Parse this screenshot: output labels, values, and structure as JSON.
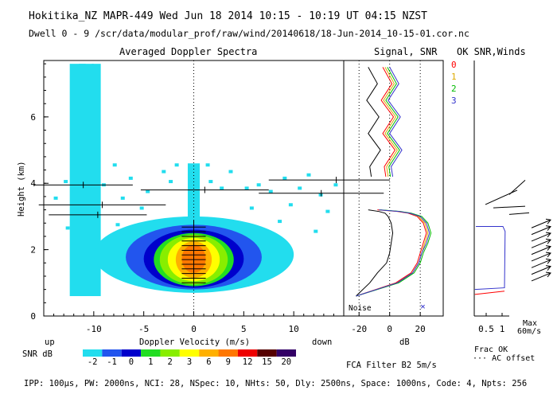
{
  "header": {
    "title": "Hokitika_NZ  MAPR-449  Wed Jun 18 2014 10:15 - 10:19 UT 04:15 NZST",
    "dwell": "Dwell  0 - 9   /scr/data/modular_prof/raw/wind/20140618/18-Jun-2014_10-15-01.cor.nc"
  },
  "footer": {
    "params": "IPP: 100μs,  PW: 2000ns,  NCI: 28,  NSpec: 10, NHts: 50,  Dly: 2500ns,  Space: 1000ns,  Code: 4,  Npts: 256",
    "filter": "FCA Filter B2  5m/s"
  },
  "chart_data": [
    {
      "type": "heatmap",
      "title": "Averaged Doppler Spectra",
      "xlabel": "Doppler Velocity (m/s)",
      "ylabel": "Height (km)",
      "xlim": [
        -15,
        15
      ],
      "ylim": [
        0,
        7.7
      ],
      "xticks": [
        -10,
        -5,
        0,
        5,
        10
      ],
      "yticks": [
        0,
        2,
        4,
        6
      ],
      "x_direction_labels": {
        "left": "up",
        "right": "down"
      },
      "snr_colorbar": {
        "label": "SNR dB",
        "levels": [
          "-2",
          "-1",
          "0",
          "1",
          "2",
          "3",
          "6",
          "9",
          "12",
          "15",
          "20"
        ],
        "colors": [
          "#22ddee",
          "#2255ee",
          "#0000cc",
          "#22dd22",
          "#88ee00",
          "#ffff00",
          "#ffb000",
          "#ff7700",
          "#ee0000",
          "#550000",
          "#330066"
        ]
      }
    },
    {
      "type": "line",
      "title": "Signal, SNR",
      "xlabel": "dB",
      "xlim": [
        -30,
        35
      ],
      "xticks": [
        -20,
        0,
        20
      ],
      "noise_label": "Noise",
      "series": [
        {
          "name": "signal",
          "color": "#000000",
          "x": [
            -22,
            -13,
            -8,
            -2,
            0,
            1,
            2,
            1,
            -1,
            -3,
            -7,
            -14
          ],
          "y": [
            0.6,
            1.0,
            1.3,
            1.6,
            1.9,
            2.2,
            2.5,
            2.8,
            3.0,
            3.1,
            3.15,
            3.2
          ]
        },
        {
          "name": "0",
          "color": "#ff0000",
          "x": [
            -22,
            4,
            14,
            18,
            20,
            22,
            24,
            22,
            18,
            12,
            5,
            -8
          ],
          "y": [
            0.6,
            1.0,
            1.3,
            1.6,
            1.9,
            2.2,
            2.5,
            2.8,
            3.0,
            3.1,
            3.15,
            3.2
          ]
        },
        {
          "name": "1",
          "color": "#ddaa00",
          "x": [
            -22,
            5,
            15,
            19,
            21,
            23,
            25,
            23,
            19,
            13,
            6,
            -7
          ],
          "y": [
            0.6,
            1.0,
            1.3,
            1.6,
            1.9,
            2.2,
            2.5,
            2.8,
            3.0,
            3.1,
            3.15,
            3.2
          ]
        },
        {
          "name": "2",
          "color": "#00bb00",
          "x": [
            -22,
            6,
            16,
            20,
            22,
            25,
            27,
            25,
            21,
            14,
            7,
            -6
          ],
          "y": [
            0.6,
            1.0,
            1.3,
            1.6,
            1.9,
            2.2,
            2.5,
            2.8,
            3.0,
            3.1,
            3.15,
            3.2
          ]
        },
        {
          "name": "3",
          "color": "#3333cc",
          "x": [
            -22,
            5,
            15,
            19,
            21,
            24,
            26,
            24,
            20,
            13,
            6,
            -7
          ],
          "y": [
            0.6,
            1.0,
            1.3,
            1.6,
            1.9,
            2.2,
            2.5,
            2.8,
            3.0,
            3.1,
            3.15,
            3.2
          ]
        }
      ],
      "legend": [
        "0",
        "1",
        "2",
        "3"
      ]
    },
    {
      "type": "line",
      "title": "OK SNR,Winds",
      "xticks": [
        "0.5",
        "1"
      ],
      "xlabels": [
        "Frac OK",
        "AC offset"
      ],
      "max_label": "Max",
      "max_value": "60m/s",
      "frac_ok_red": {
        "x": [
          0.02,
          0.95
        ],
        "y": [
          0.65,
          0.75
        ]
      },
      "frac_ok_blue": {
        "x": [
          0.02,
          0.95,
          0.97,
          0.9,
          0.05
        ],
        "y": [
          0.8,
          0.85,
          2.55,
          2.7,
          2.7
        ]
      }
    }
  ]
}
